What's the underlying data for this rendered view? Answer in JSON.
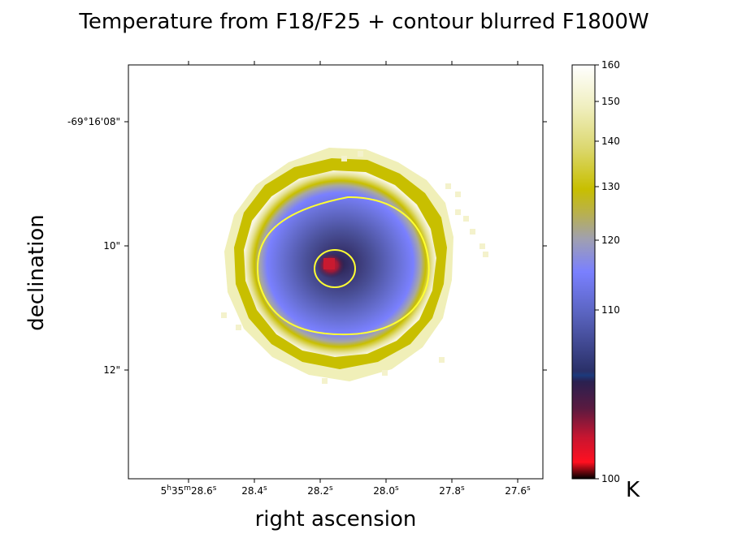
{
  "chart_data": {
    "type": "heatmap",
    "title": "Temperature from F18/F25 + contour blurred F1800W",
    "xlabel": "right ascension",
    "ylabel": "declination",
    "x_ticks": [
      {
        "h": "5",
        "m": "35",
        "s": "28.6"
      },
      {
        "h": "",
        "m": "",
        "s": "28.4"
      },
      {
        "h": "",
        "m": "",
        "s": "28.2"
      },
      {
        "h": "",
        "m": "",
        "s": "28.0"
      },
      {
        "h": "",
        "m": "",
        "s": "27.8"
      },
      {
        "h": "",
        "m": "",
        "s": "27.6"
      }
    ],
    "y_ticks": [
      "-69°16'08\"",
      "10\"",
      "12\""
    ],
    "colorbar": {
      "unit": "K",
      "range": [
        100,
        160
      ],
      "ticks": [
        100,
        110,
        120,
        130,
        140,
        150,
        160
      ],
      "tick_labels": [
        "100",
        "110",
        "120",
        "130",
        "140",
        "150",
        "160"
      ]
    },
    "contours": [
      "outer contour (blurred F1800W)",
      "inner contour (blurred F1800W)"
    ],
    "colors": {
      "contour": "#ffff33",
      "cmap": [
        "#000000",
        "#ff1020",
        "#8a1a3a",
        "#1a2e6e",
        "#4a5aa8",
        "#7a80ff",
        "#aaaaaa",
        "#c8bf00",
        "#f0efb0",
        "#ffffff"
      ]
    }
  }
}
